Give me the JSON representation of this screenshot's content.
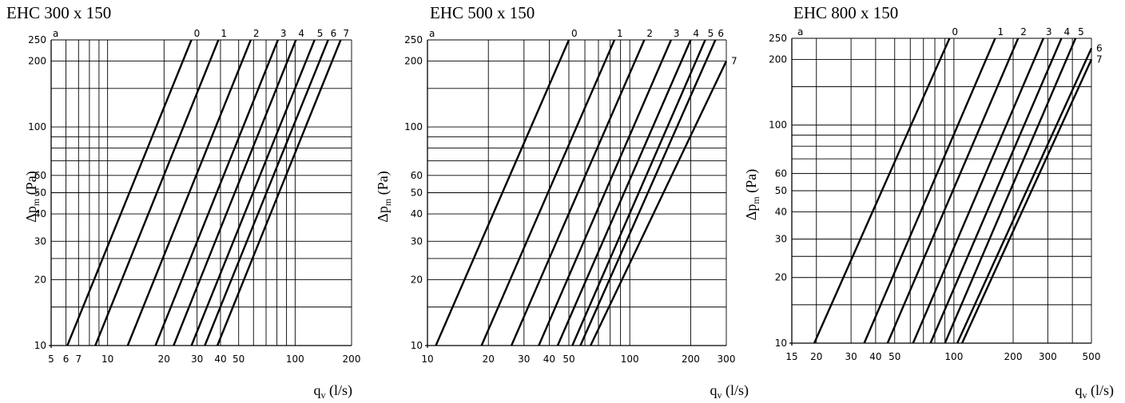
{
  "chart_data": [
    {
      "type": "line",
      "title": "EHC 300 x 150",
      "xlabel": "q",
      "xlabel_sub": "v",
      "xlabel_unit": "(l/s)",
      "ylabel": "Δp",
      "ylabel_sub": "m",
      "ylabel_unit": "(Pa)",
      "x_scale": "log",
      "y_scale": "log",
      "xlim": [
        5,
        200
      ],
      "ylim": [
        10,
        250
      ],
      "x_ticks": [
        5,
        6,
        7,
        10,
        20,
        30,
        40,
        50,
        100,
        200
      ],
      "x_tick_labels": [
        "5",
        "6",
        "7",
        "10",
        "20",
        "30",
        "40",
        "50",
        "100",
        "200"
      ],
      "y_ticks": [
        10,
        20,
        30,
        40,
        50,
        60,
        100,
        200,
        250
      ],
      "y_tick_labels": [
        "10",
        "20",
        "30",
        "40",
        "50",
        "60",
        "100",
        "200",
        "250"
      ],
      "curve_axis_label": "a",
      "series": [
        {
          "name": "0",
          "x": [
            6.1,
            28.0
          ],
          "y": [
            10,
            250
          ]
        },
        {
          "name": "1",
          "x": [
            8.6,
            39.0
          ],
          "y": [
            10,
            250
          ]
        },
        {
          "name": "2",
          "x": [
            12.8,
            58.0
          ],
          "y": [
            10,
            250
          ]
        },
        {
          "name": "3",
          "x": [
            18.0,
            81.0
          ],
          "y": [
            10,
            250
          ]
        },
        {
          "name": "4",
          "x": [
            22.5,
            101.0
          ],
          "y": [
            10,
            250
          ]
        },
        {
          "name": "5",
          "x": [
            28.0,
            127.0
          ],
          "y": [
            10,
            250
          ]
        },
        {
          "name": "6",
          "x": [
            33.0,
            150.0
          ],
          "y": [
            10,
            250
          ]
        },
        {
          "name": "7",
          "x": [
            38.5,
            175.0
          ],
          "y": [
            10,
            250
          ]
        }
      ]
    },
    {
      "type": "line",
      "title": "EHC 500 x 150",
      "xlabel": "q",
      "xlabel_sub": "v",
      "xlabel_unit": "(l/s)",
      "ylabel": "Δp",
      "ylabel_sub": "m",
      "ylabel_unit": "(Pa)",
      "x_scale": "log",
      "y_scale": "log",
      "xlim": [
        10,
        300
      ],
      "ylim": [
        10,
        250
      ],
      "x_ticks": [
        10,
        20,
        30,
        40,
        50,
        100,
        200,
        300
      ],
      "x_tick_labels": [
        "10",
        "20",
        "30",
        "40",
        "50",
        "100",
        "200",
        "300"
      ],
      "y_ticks": [
        10,
        20,
        30,
        40,
        50,
        60,
        100,
        200,
        250
      ],
      "y_tick_labels": [
        "10",
        "20",
        "30",
        "40",
        "50",
        "60",
        "100",
        "200",
        "250"
      ],
      "curve_axis_label": "a",
      "series": [
        {
          "name": "0",
          "x": [
            11.0,
            50.0
          ],
          "y": [
            10,
            250
          ]
        },
        {
          "name": "1",
          "x": [
            18.5,
            84.0
          ],
          "y": [
            10,
            250
          ]
        },
        {
          "name": "2",
          "x": [
            26.0,
            118.0
          ],
          "y": [
            10,
            250
          ]
        },
        {
          "name": "3",
          "x": [
            35.5,
            160.0
          ],
          "y": [
            10,
            250
          ]
        },
        {
          "name": "4",
          "x": [
            44.0,
            200.0
          ],
          "y": [
            10,
            250
          ]
        },
        {
          "name": "5",
          "x": [
            52.0,
            236.0
          ],
          "y": [
            10,
            250
          ]
        },
        {
          "name": "6",
          "x": [
            57.0,
            265.0
          ],
          "y": [
            10,
            250
          ]
        },
        {
          "name": "7",
          "x": [
            64.0,
            300.0
          ],
          "y": [
            10,
            200
          ]
        }
      ]
    },
    {
      "type": "line",
      "title": "EHC 800 x 150",
      "xlabel": "q",
      "xlabel_sub": "v",
      "xlabel_unit": "(l/s)",
      "ylabel": "Δp",
      "ylabel_sub": "m",
      "ylabel_unit": "(Pa)",
      "x_scale": "log",
      "y_scale": "log",
      "xlim": [
        15,
        500
      ],
      "ylim": [
        10,
        250
      ],
      "x_ticks": [
        15,
        20,
        30,
        40,
        50,
        100,
        200,
        300,
        500
      ],
      "x_tick_labels": [
        "15",
        "20",
        "30",
        "40",
        "50",
        "100",
        "200",
        "300",
        "500"
      ],
      "y_ticks": [
        10,
        20,
        30,
        40,
        50,
        60,
        100,
        200,
        250
      ],
      "y_tick_labels": [
        "10",
        "20",
        "30",
        "40",
        "50",
        "60",
        "100",
        "200",
        "250"
      ],
      "curve_axis_label": "a",
      "series": [
        {
          "name": "0",
          "x": [
            19.5,
            95.0
          ],
          "y": [
            10,
            250
          ]
        },
        {
          "name": "1",
          "x": [
            35.0,
            162.0
          ],
          "y": [
            10,
            250
          ]
        },
        {
          "name": "2",
          "x": [
            46.0,
            212.0
          ],
          "y": [
            10,
            250
          ]
        },
        {
          "name": "3",
          "x": [
            62.0,
            285.0
          ],
          "y": [
            10,
            250
          ]
        },
        {
          "name": "4",
          "x": [
            76.0,
            352.0
          ],
          "y": [
            10,
            250
          ]
        },
        {
          "name": "5",
          "x": [
            90.0,
            415.0
          ],
          "y": [
            10,
            250
          ]
        },
        {
          "name": "6",
          "x": [
            104.0,
            500.0
          ],
          "y": [
            10,
            225
          ]
        },
        {
          "name": "7",
          "x": [
            110.0,
            500.0
          ],
          "y": [
            10,
            200
          ]
        }
      ]
    }
  ]
}
